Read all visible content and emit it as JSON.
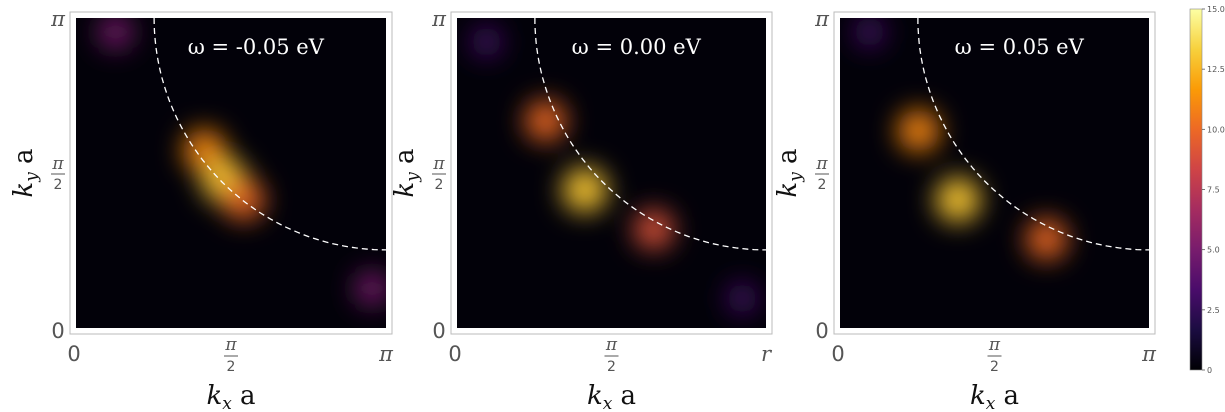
{
  "chart_data": [
    {
      "type": "heatmap",
      "title": "ω = -0.05 eV",
      "xlabel": "k_x a",
      "ylabel": "k_y a",
      "xlim": [
        "0",
        "π"
      ],
      "ylim": [
        "0",
        "π"
      ],
      "x_ticks": [
        "0",
        "π/2",
        "π"
      ],
      "y_ticks": [
        "0",
        "π/2",
        "π"
      ],
      "fermi_surface": "dashed-white",
      "hotspots": [
        {
          "kx": 1.3,
          "ky": 1.8,
          "intensity": 11
        },
        {
          "kx": 1.5,
          "ky": 1.5,
          "intensity": 13
        },
        {
          "kx": 1.7,
          "ky": 1.3,
          "intensity": 10
        },
        {
          "kx": 0.4,
          "ky": 3.0,
          "intensity": 5
        },
        {
          "kx": 3.0,
          "ky": 0.4,
          "intensity": 5
        }
      ]
    },
    {
      "type": "heatmap",
      "title": "ω = 0.00 eV",
      "xlabel": "k_x a",
      "ylabel": "k_y a",
      "xlim": [
        "0",
        "π"
      ],
      "ylim": [
        "0",
        "π"
      ],
      "x_ticks": [
        "0",
        "π/2",
        "r"
      ],
      "y_ticks": [
        "0",
        "π/2",
        "π"
      ],
      "fermi_surface": "dashed-white",
      "hotspots": [
        {
          "kx": 0.9,
          "ky": 2.1,
          "intensity": 10
        },
        {
          "kx": 1.3,
          "ky": 1.4,
          "intensity": 13
        },
        {
          "kx": 2.0,
          "ky": 1.0,
          "intensity": 9
        },
        {
          "kx": 0.3,
          "ky": 2.9,
          "intensity": 3
        },
        {
          "kx": 2.9,
          "ky": 0.3,
          "intensity": 3
        }
      ]
    },
    {
      "type": "heatmap",
      "title": "ω = 0.05 eV",
      "xlabel": "k_x a",
      "ylabel": "k_y a",
      "xlim": [
        "0",
        "π"
      ],
      "ylim": [
        "0",
        "π"
      ],
      "x_ticks": [
        "0",
        "π/2",
        "π"
      ],
      "y_ticks": [
        "0",
        "π/2",
        "π"
      ],
      "fermi_surface": "dashed-white",
      "hotspots": [
        {
          "kx": 0.8,
          "ky": 2.0,
          "intensity": 11
        },
        {
          "kx": 1.2,
          "ky": 1.3,
          "intensity": 13
        },
        {
          "kx": 2.1,
          "ky": 0.9,
          "intensity": 10
        },
        {
          "kx": 0.3,
          "ky": 3.0,
          "intensity": 3
        }
      ]
    }
  ],
  "colorbar": {
    "min": 0,
    "max": 15,
    "ticks": [
      "0",
      "2.5",
      "5.0",
      "7.5",
      "10.0",
      "12.5",
      "15.0"
    ],
    "colors": [
      "#000004",
      "#1b0c41",
      "#4a0c6b",
      "#781c6d",
      "#a52c60",
      "#cf4446",
      "#ed6925",
      "#fb9b06",
      "#f7d13d",
      "#fcffa4"
    ]
  }
}
